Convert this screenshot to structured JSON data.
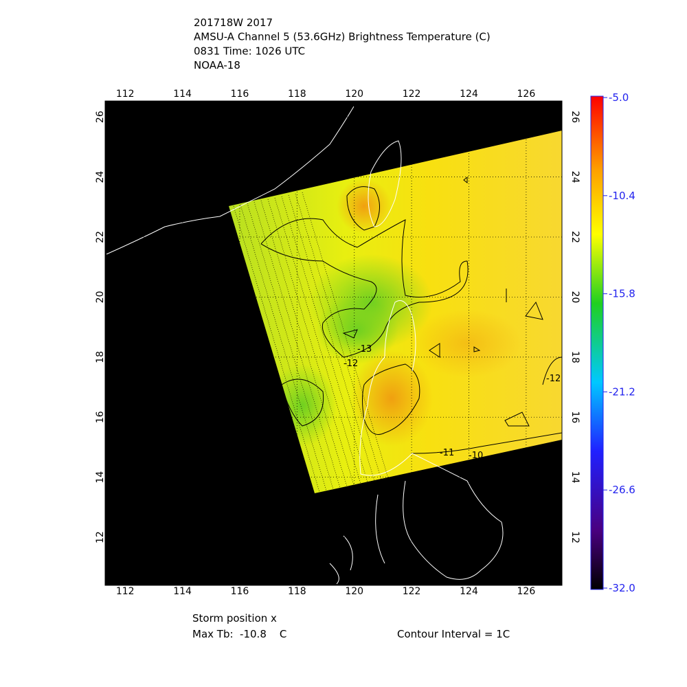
{
  "header": {
    "lines": [
      "201718W 2017",
      "AMSU-A Channel 5 (53.6GHz) Brightness Temperature (C)",
      "0831 Time: 1026 UTC",
      "NOAA-18"
    ]
  },
  "map": {
    "lon_range": [
      111.3,
      127.25
    ],
    "lat_range": [
      10.4,
      26.53
    ],
    "lon_ticks": [
      112,
      114,
      116,
      118,
      120,
      122,
      124,
      126
    ],
    "lat_ticks": [
      12,
      14,
      16,
      18,
      20,
      22,
      24,
      26
    ],
    "contour_labels": [
      "-13",
      "-12",
      "-11",
      "-10",
      "-12"
    ]
  },
  "colorbar": {
    "range": [
      -32,
      -5
    ],
    "ticks": [
      {
        "value": -5,
        "label": "-5.0"
      },
      {
        "value": -10.4,
        "label": "-10.4"
      },
      {
        "value": -15.8,
        "label": "-15.8"
      },
      {
        "value": -21.2,
        "label": "-21.2"
      },
      {
        "value": -26.6,
        "label": "-26.6"
      },
      {
        "value": -32,
        "label": "-32.0"
      }
    ]
  },
  "footer": {
    "storm": "Storm position x",
    "max_tb": "Max Tb:  -10.8    C",
    "contour": "Contour Interval = 1C"
  }
}
